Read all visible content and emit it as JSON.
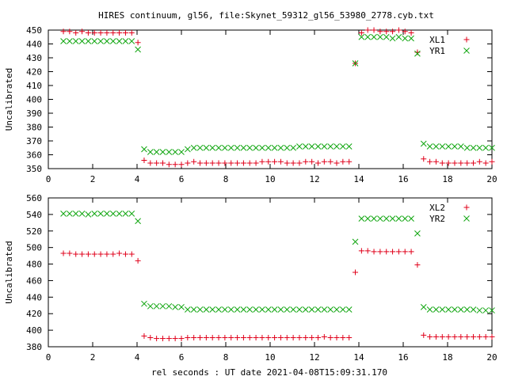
{
  "title": "HIRES continuum, gl56, file:Skynet_59312_gl56_53980_2778.cyb.txt",
  "xlabel": "rel seconds : UT date 2021-04-08T15:09:31.170",
  "colors": {
    "xl": "#e0001a",
    "yr": "#11a611"
  },
  "chart_data": [
    {
      "type": "scatter",
      "ylabel": "Uncalibrated",
      "xlim": [
        0,
        20
      ],
      "ylim": [
        350,
        450
      ],
      "xticks": [
        0,
        2,
        4,
        6,
        8,
        10,
        12,
        14,
        16,
        18,
        20
      ],
      "yticks": [
        350,
        360,
        370,
        380,
        390,
        400,
        410,
        420,
        430,
        440,
        450
      ],
      "legend_position": "top-right",
      "series": [
        {
          "name": "XL1",
          "marker": "plus",
          "x": [
            0.68,
            0.96,
            1.24,
            1.52,
            1.8,
            2.08,
            2.36,
            2.64,
            2.92,
            3.2,
            3.48,
            3.76,
            4.04,
            4.32,
            4.6,
            4.88,
            5.16,
            5.44,
            5.72,
            6.0,
            6.28,
            6.56,
            6.84,
            7.12,
            7.4,
            7.68,
            7.96,
            8.24,
            8.52,
            8.8,
            9.08,
            9.36,
            9.64,
            9.92,
            10.2,
            10.48,
            10.76,
            11.04,
            11.32,
            11.6,
            11.88,
            12.16,
            12.44,
            12.72,
            13.0,
            13.28,
            13.56,
            13.84,
            14.12,
            14.4,
            14.68,
            14.96,
            15.24,
            15.52,
            15.8,
            16.08,
            16.36,
            16.64,
            16.92,
            17.2,
            17.48,
            17.76,
            18.04,
            18.32,
            18.6,
            18.88,
            19.16,
            19.44,
            19.72,
            20.0
          ],
          "y": [
            449,
            449,
            448,
            449,
            448,
            448,
            448,
            448,
            448,
            448,
            448,
            448,
            441,
            356,
            354,
            354,
            354,
            353,
            353,
            353,
            354,
            355,
            354,
            354,
            354,
            354,
            354,
            354,
            354,
            354,
            354,
            354,
            355,
            355,
            355,
            355,
            354,
            354,
            354,
            355,
            355,
            354,
            355,
            355,
            354,
            355,
            355,
            426,
            448,
            450,
            450,
            449,
            449,
            449,
            450,
            449,
            448,
            434,
            357,
            355,
            355,
            354,
            354,
            354,
            354,
            354,
            354,
            355,
            354,
            355
          ]
        },
        {
          "name": "YR1",
          "marker": "cross",
          "x": [
            0.68,
            0.96,
            1.24,
            1.52,
            1.8,
            2.08,
            2.36,
            2.64,
            2.92,
            3.2,
            3.48,
            3.76,
            4.04,
            4.32,
            4.6,
            4.88,
            5.16,
            5.44,
            5.72,
            6.0,
            6.28,
            6.56,
            6.84,
            7.12,
            7.4,
            7.68,
            7.96,
            8.24,
            8.52,
            8.8,
            9.08,
            9.36,
            9.64,
            9.92,
            10.2,
            10.48,
            10.76,
            11.04,
            11.32,
            11.6,
            11.88,
            12.16,
            12.44,
            12.72,
            13.0,
            13.28,
            13.56,
            13.84,
            14.12,
            14.4,
            14.68,
            14.96,
            15.24,
            15.52,
            15.8,
            16.08,
            16.36,
            16.64,
            16.92,
            17.2,
            17.48,
            17.76,
            18.04,
            18.32,
            18.6,
            18.88,
            19.16,
            19.44,
            19.72,
            20.0
          ],
          "y": [
            442,
            442,
            442,
            442,
            442,
            442,
            442,
            442,
            442,
            442,
            442,
            442,
            436,
            364,
            362,
            362,
            362,
            362,
            362,
            362,
            364,
            365,
            365,
            365,
            365,
            365,
            365,
            365,
            365,
            365,
            365,
            365,
            365,
            365,
            365,
            365,
            365,
            365,
            366,
            366,
            366,
            366,
            366,
            366,
            366,
            366,
            366,
            426,
            445,
            445,
            445,
            445,
            445,
            444,
            445,
            444,
            444,
            433,
            368,
            366,
            366,
            366,
            366,
            366,
            366,
            365,
            365,
            365,
            365,
            365
          ]
        }
      ]
    },
    {
      "type": "scatter",
      "ylabel": "Uncalibrated",
      "xlim": [
        0,
        20
      ],
      "ylim": [
        380,
        560
      ],
      "xticks": [
        0,
        2,
        4,
        6,
        8,
        10,
        12,
        14,
        16,
        18,
        20
      ],
      "yticks": [
        380,
        400,
        420,
        440,
        460,
        480,
        500,
        520,
        540,
        560
      ],
      "legend_position": "top-right",
      "series": [
        {
          "name": "XL2",
          "marker": "plus",
          "x": [
            0.68,
            0.96,
            1.24,
            1.52,
            1.8,
            2.08,
            2.36,
            2.64,
            2.92,
            3.2,
            3.48,
            3.76,
            4.04,
            4.32,
            4.6,
            4.88,
            5.16,
            5.44,
            5.72,
            6.0,
            6.28,
            6.56,
            6.84,
            7.12,
            7.4,
            7.68,
            7.96,
            8.24,
            8.52,
            8.8,
            9.08,
            9.36,
            9.64,
            9.92,
            10.2,
            10.48,
            10.76,
            11.04,
            11.32,
            11.6,
            11.88,
            12.16,
            12.44,
            12.72,
            13.0,
            13.28,
            13.56,
            13.84,
            14.12,
            14.4,
            14.68,
            14.96,
            15.24,
            15.52,
            15.8,
            16.08,
            16.36,
            16.64,
            16.92,
            17.2,
            17.48,
            17.76,
            18.04,
            18.32,
            18.6,
            18.88,
            19.16,
            19.44,
            19.72,
            20.0
          ],
          "y": [
            493,
            493,
            492,
            492,
            492,
            492,
            492,
            492,
            492,
            493,
            492,
            492,
            484,
            393,
            391,
            390,
            390,
            390,
            390,
            390,
            391,
            391,
            391,
            391,
            391,
            391,
            391,
            391,
            391,
            391,
            391,
            391,
            391,
            391,
            391,
            391,
            391,
            391,
            391,
            391,
            391,
            391,
            392,
            391,
            391,
            391,
            391,
            470,
            496,
            496,
            495,
            495,
            495,
            495,
            495,
            495,
            495,
            479,
            394,
            392,
            392,
            392,
            392,
            392,
            392,
            392,
            392,
            392,
            392,
            392
          ]
        },
        {
          "name": "YR2",
          "marker": "cross",
          "x": [
            0.68,
            0.96,
            1.24,
            1.52,
            1.8,
            2.08,
            2.36,
            2.64,
            2.92,
            3.2,
            3.48,
            3.76,
            4.04,
            4.32,
            4.6,
            4.88,
            5.16,
            5.44,
            5.72,
            6.0,
            6.28,
            6.56,
            6.84,
            7.12,
            7.4,
            7.68,
            7.96,
            8.24,
            8.52,
            8.8,
            9.08,
            9.36,
            9.64,
            9.92,
            10.2,
            10.48,
            10.76,
            11.04,
            11.32,
            11.6,
            11.88,
            12.16,
            12.44,
            12.72,
            13.0,
            13.28,
            13.56,
            13.84,
            14.12,
            14.4,
            14.68,
            14.96,
            15.24,
            15.52,
            15.8,
            16.08,
            16.36,
            16.64,
            16.92,
            17.2,
            17.48,
            17.76,
            18.04,
            18.32,
            18.6,
            18.88,
            19.16,
            19.44,
            19.72,
            20.0
          ],
          "y": [
            541,
            541,
            541,
            541,
            540,
            541,
            541,
            541,
            541,
            541,
            541,
            541,
            532,
            432,
            429,
            429,
            429,
            429,
            428,
            428,
            425,
            425,
            425,
            425,
            425,
            425,
            425,
            425,
            425,
            425,
            425,
            425,
            425,
            425,
            425,
            425,
            425,
            425,
            425,
            425,
            425,
            425,
            425,
            425,
            425,
            425,
            425,
            507,
            535,
            535,
            535,
            535,
            535,
            535,
            535,
            535,
            535,
            517,
            428,
            425,
            425,
            425,
            425,
            425,
            425,
            425,
            425,
            424,
            424,
            424
          ]
        }
      ]
    }
  ]
}
